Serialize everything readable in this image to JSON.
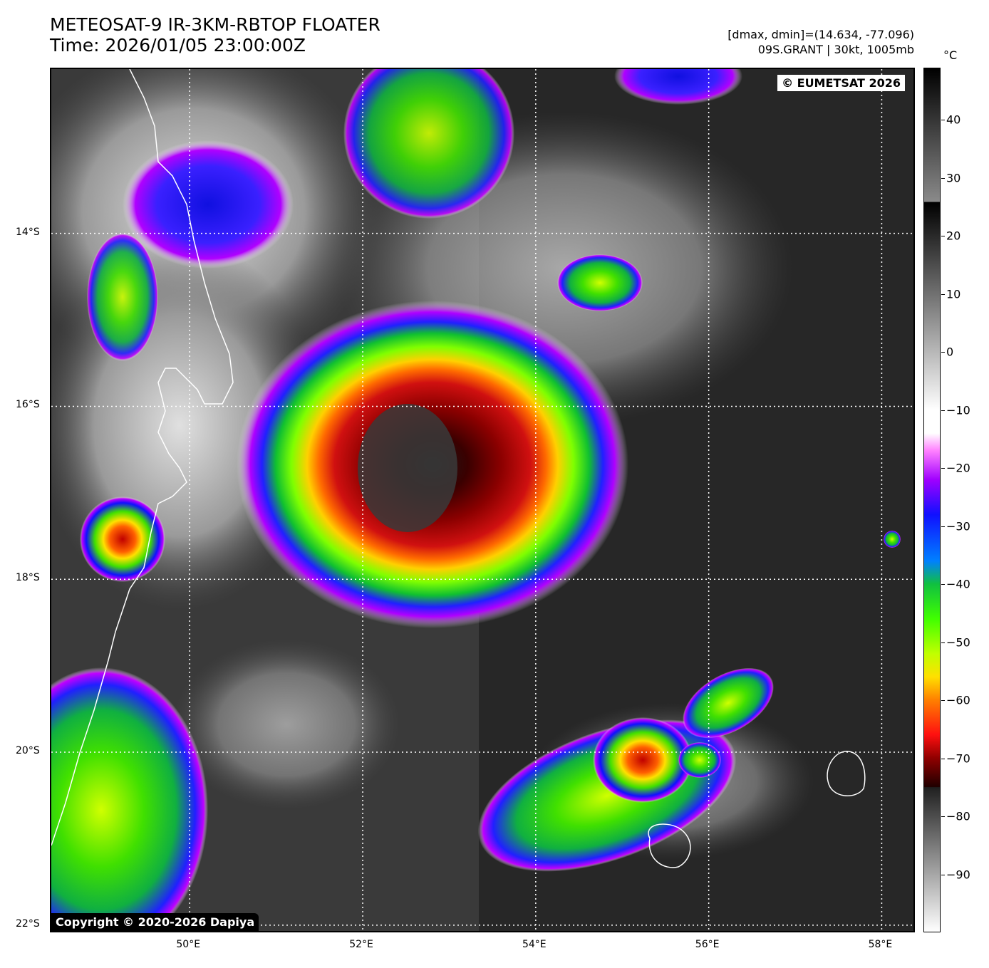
{
  "title": {
    "line1": "METEOSAT-9 IR-3KM-RBTOP FLOATER",
    "line2": "Time: 2026/01/05 23:00:00Z"
  },
  "info": {
    "line1": "[dmax, dmin]=(14.634, -77.096)",
    "line2": "09S.GRANT | 30kt, 1005mb"
  },
  "map": {
    "lat_range": [
      -22.1,
      -12.1
    ],
    "lon_range": [
      48.4,
      58.4
    ],
    "lat_ticks": [
      {
        "value": -14,
        "label": "14°S"
      },
      {
        "value": -16,
        "label": "16°S"
      },
      {
        "value": -18,
        "label": "18°S"
      },
      {
        "value": -20,
        "label": "20°S"
      },
      {
        "value": -22,
        "label": "22°S"
      }
    ],
    "lon_ticks": [
      {
        "value": 50,
        "label": "50°E"
      },
      {
        "value": 52,
        "label": "52°E"
      },
      {
        "value": 54,
        "label": "54°E"
      },
      {
        "value": 56,
        "label": "56°E"
      },
      {
        "value": 58,
        "label": "58°E"
      }
    ],
    "grid": "dotted-white",
    "badge_eumetsat": "© EUMETSAT 2026",
    "badge_copyright": "Copyright © 2020-2026 Dapiya"
  },
  "colorbar": {
    "unit": "°C",
    "range": [
      -100,
      49
    ],
    "ticks": [
      {
        "value": 40,
        "label": "40"
      },
      {
        "value": 30,
        "label": "30"
      },
      {
        "value": 20,
        "label": "20"
      },
      {
        "value": 10,
        "label": "10"
      },
      {
        "value": 0,
        "label": "0"
      },
      {
        "value": -10,
        "label": "−10"
      },
      {
        "value": -20,
        "label": "−20"
      },
      {
        "value": -30,
        "label": "−30"
      },
      {
        "value": -40,
        "label": "−40"
      },
      {
        "value": -50,
        "label": "−50"
      },
      {
        "value": -60,
        "label": "−60"
      },
      {
        "value": -70,
        "label": "−70"
      },
      {
        "value": -80,
        "label": "−80"
      },
      {
        "value": -90,
        "label": "−90"
      }
    ]
  }
}
